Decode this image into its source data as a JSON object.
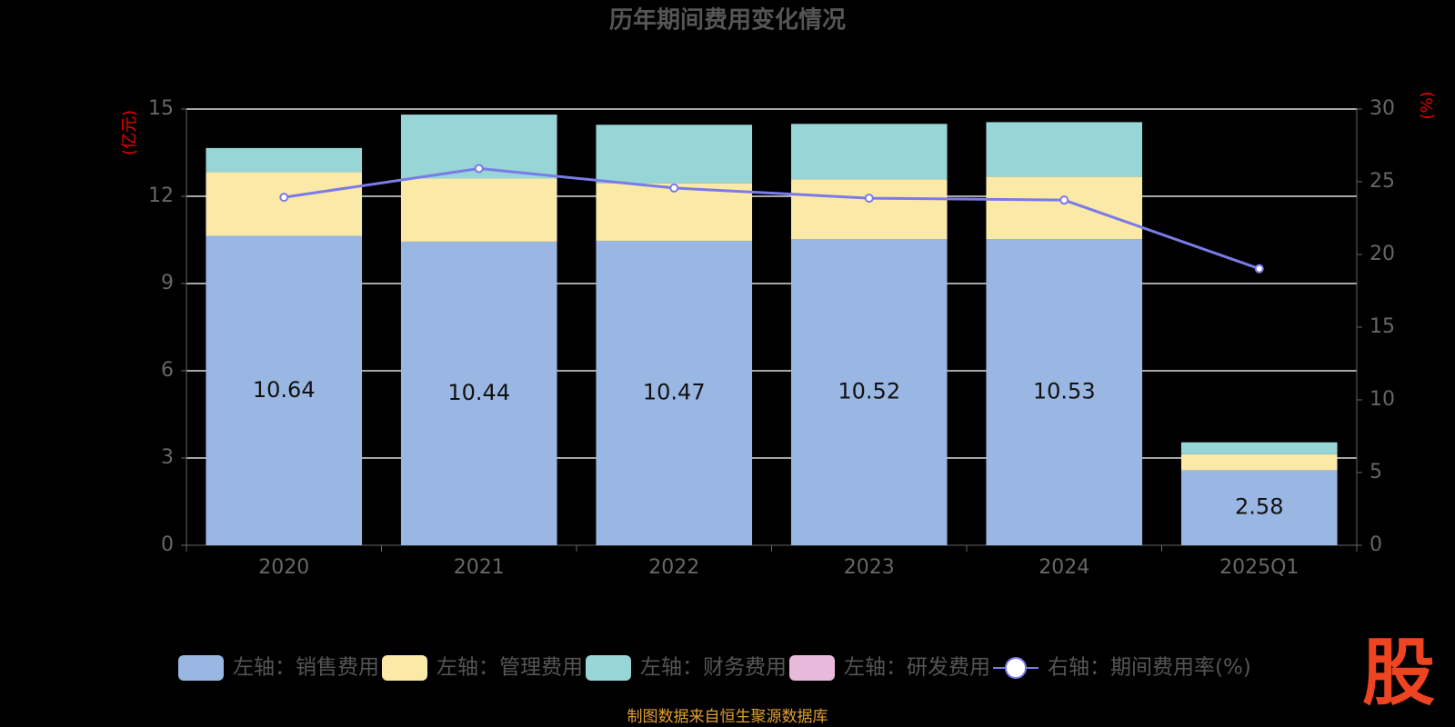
{
  "chart_data": {
    "type": "bar-line",
    "title": "历年期间费用变化情况",
    "y_label": "(亿元)",
    "y2_label": "(%)",
    "categories": [
      "2020",
      "2021",
      "2022",
      "2023",
      "2024",
      "2025Q1"
    ],
    "series": [
      {
        "name": "左轴：销售费用",
        "type": "bar",
        "color": "#9ab7e3",
        "values": [
          10.64,
          10.44,
          10.47,
          10.52,
          10.53,
          2.58
        ],
        "show_labels": true
      },
      {
        "name": "左轴：管理费用",
        "type": "bar",
        "color": "#fbe9a8",
        "values": [
          2.19,
          2.17,
          1.98,
          2.06,
          2.14,
          0.55
        ]
      },
      {
        "name": "左轴：财务费用",
        "type": "bar",
        "color": "#97d5d6",
        "values": [
          0.83,
          2.2,
          2.01,
          1.91,
          1.88,
          0.41
        ]
      },
      {
        "name": "左轴：研发费用",
        "type": "bar",
        "color": "#e8b9da",
        "values": [
          0,
          0,
          0,
          0,
          0,
          0
        ]
      },
      {
        "name": "右轴：期间费用率(%)",
        "type": "line",
        "axis": "y2",
        "color": "#7b7be8",
        "values": [
          23.93,
          25.91,
          24.57,
          23.87,
          23.74,
          19.02
        ]
      }
    ],
    "ylim": [
      0,
      15
    ],
    "yticks": [
      0,
      3,
      6,
      9,
      12,
      15
    ],
    "y2lim": [
      0,
      30
    ],
    "y2ticks": [
      0,
      5,
      10,
      15,
      20,
      25,
      30
    ],
    "grid": true,
    "source": "制图数据来自恒生聚源数据库",
    "watermark": "股"
  }
}
